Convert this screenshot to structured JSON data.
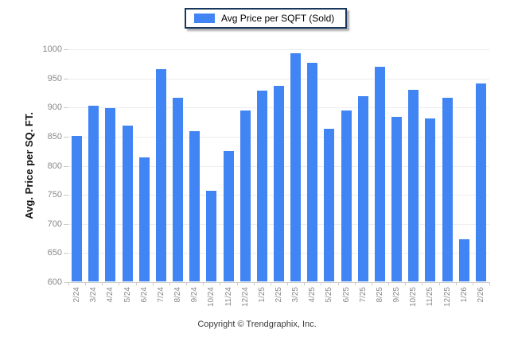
{
  "legend": {
    "label": "Avg Price per SQFT (Sold)"
  },
  "footer": {
    "copyright": "Copyright © Trendgraphix, Inc."
  },
  "colors": {
    "bar": "#4184F3",
    "grid": "#ededed",
    "axis": "#c9c9c9",
    "tick_text": "#898989",
    "legend_border": "#17375D"
  },
  "chart_data": {
    "type": "bar",
    "title": "Avg Price per SQFT (Sold)",
    "categories": [
      "2/24",
      "3/24",
      "4/24",
      "5/24",
      "6/24",
      "7/24",
      "8/24",
      "9/24",
      "10/24",
      "11/24",
      "12/24",
      "1/25",
      "2/25",
      "3/25",
      "4/25",
      "5/25",
      "6/25",
      "7/25",
      "8/25",
      "9/25",
      "10/25",
      "11/25",
      "12/25",
      "1/26",
      "2/26"
    ],
    "values": [
      850,
      902,
      897,
      868,
      813,
      965,
      916,
      858,
      755,
      824,
      894,
      928,
      936,
      992,
      976,
      862,
      893,
      918,
      969,
      882,
      929,
      880,
      915,
      672,
      940
    ],
    "xlabel": "",
    "ylabel": "Avg. Price per SQ. FT.",
    "ylim": [
      600,
      1000
    ],
    "ytick_step": 50,
    "grid": true,
    "legend_position": "top-center"
  }
}
